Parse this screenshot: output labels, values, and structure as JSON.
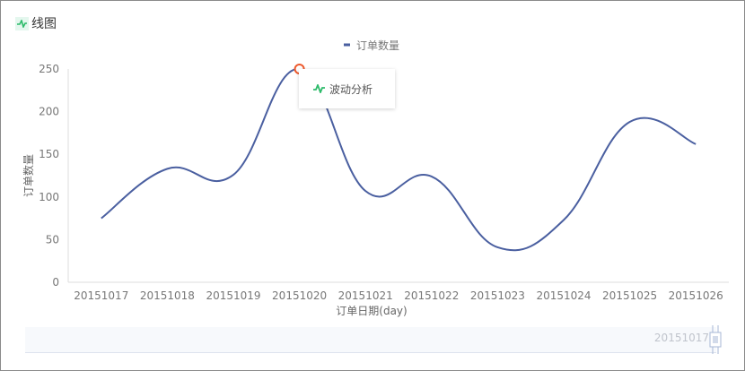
{
  "title": "线图",
  "tooltip": {
    "label": "波动分析",
    "icon": "pulse-icon"
  },
  "datazoom": {
    "label": "20151017"
  },
  "colors": {
    "series": "#4a5fa0",
    "highlight": "#ee5a2d",
    "accent": "#2dbb6a"
  },
  "chart_data": {
    "type": "line",
    "smooth": true,
    "categories": [
      "20151017",
      "20151018",
      "20151019",
      "20151020",
      "20151021",
      "20151022",
      "20151023",
      "20151024",
      "20151025",
      "20151026"
    ],
    "series": [
      {
        "name": "订单数量",
        "values": [
          75,
          133,
          126,
          250,
          107,
          124,
          41,
          73,
          188,
          162
        ]
      }
    ],
    "xlabel": "订单日期(day)",
    "ylabel": "订单数量",
    "ylim": [
      0,
      250
    ],
    "yticks": [
      0,
      50,
      100,
      150,
      200,
      250
    ],
    "legend": "top-center",
    "grid": false,
    "highlighted_point": "20151020"
  }
}
